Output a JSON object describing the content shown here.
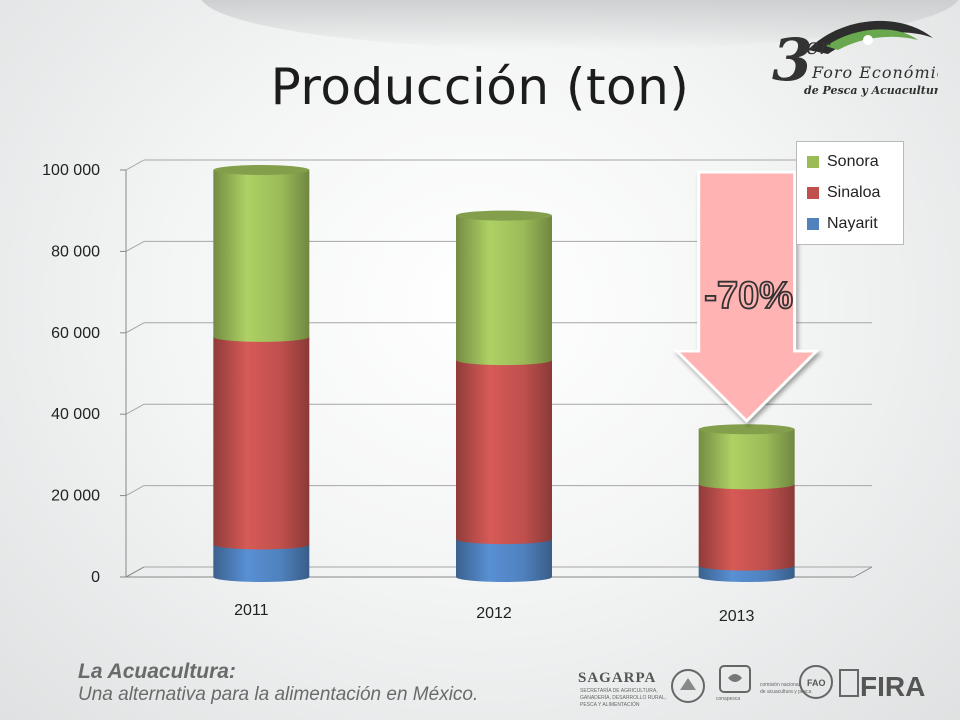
{
  "slide": {
    "title": "Producción (ton)",
    "footer_title": "La Acuacultura:",
    "footer_subtitle": "Una alternativa para la alimentación en México."
  },
  "logo": {
    "number": "3",
    "superscript": "er",
    "line1": "Foro Económico",
    "line2": "de Pesca y Acuacultura"
  },
  "footer_logos": {
    "sagarpa": "SAGARPA",
    "sagarpa_sub": [
      "SECRETARÍA DE AGRICULTURA,",
      "GANADERÍA, DESARROLLO RURAL,",
      "PESCA Y ALIMENTACIÓN"
    ],
    "conapesca": "conapesca",
    "conapesca_sub": [
      "comisión nacional",
      "de acuacultura y pesca"
    ],
    "fao": "FAO",
    "fira": "FIRA"
  },
  "annotation": {
    "text": "-70%",
    "color": "#ffb3b3",
    "outline": "#ffffff"
  },
  "chart_data": {
    "type": "bar",
    "stacked": true,
    "categories": [
      "2011",
      "2012",
      "2013"
    ],
    "series": [
      {
        "name": "Nayarit",
        "values": [
          8000,
          9300,
          2800
        ],
        "color": "#4f81bd"
      },
      {
        "name": "Sinaloa",
        "values": [
          51000,
          44000,
          20000
        ],
        "color": "#c0504d"
      },
      {
        "name": "Sonora",
        "values": [
          41000,
          35500,
          13500
        ],
        "color": "#9bbb59"
      }
    ],
    "legend_order": [
      "Sonora",
      "Sinaloa",
      "Nayarit"
    ],
    "yticks": [
      "0",
      "20 000",
      "40 000",
      "60 000",
      "80 000",
      "100 000"
    ],
    "ylim": [
      0,
      100000
    ],
    "grid": true,
    "legend_position": "top-right"
  }
}
